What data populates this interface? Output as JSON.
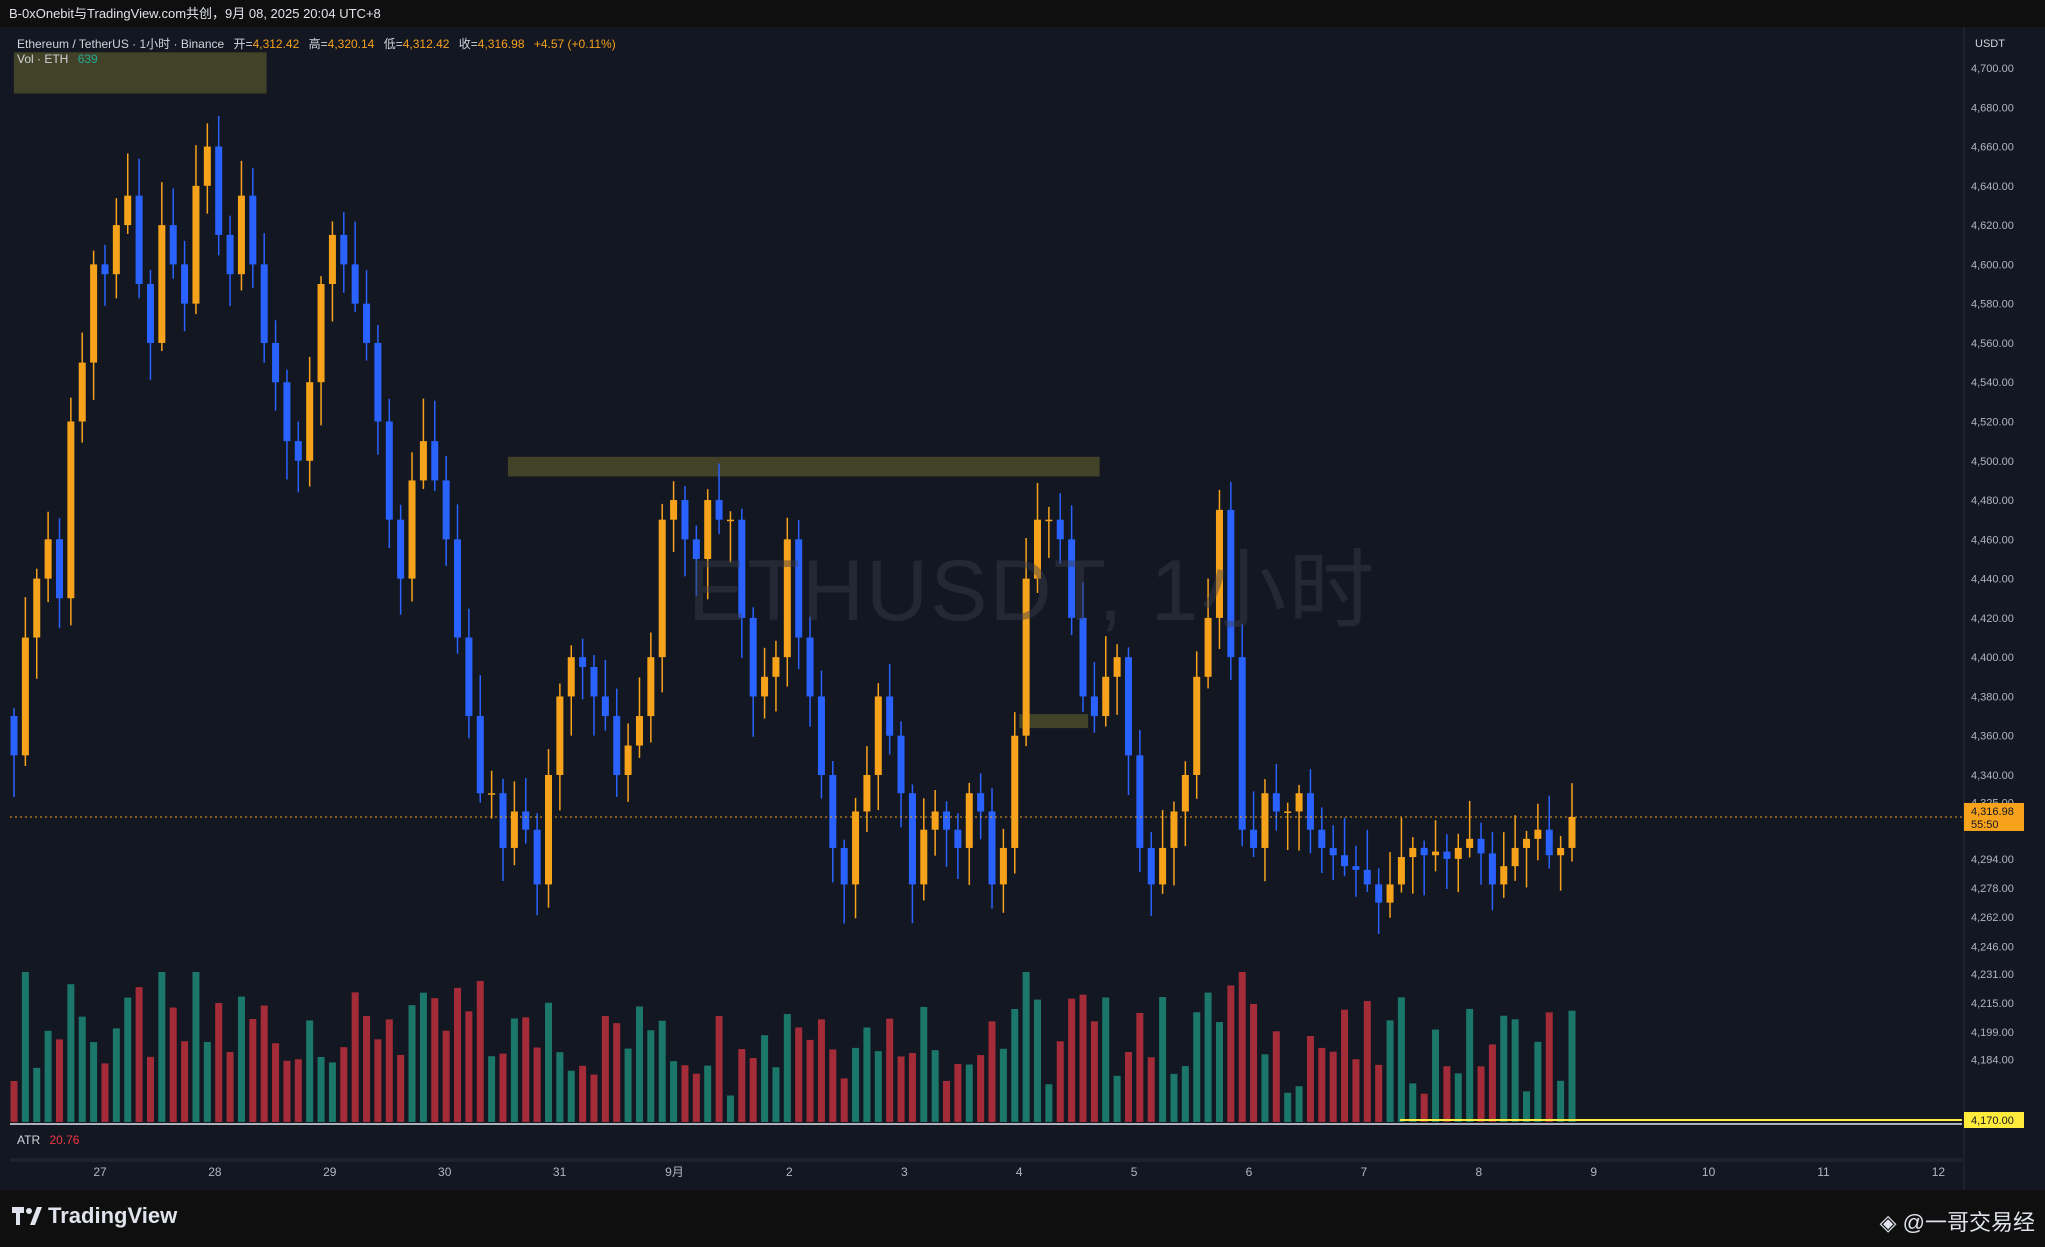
{
  "header": {
    "share_text": "B-0xOnebit与TradingView.com共创，9月 08, 2025 20:04 UTC+8"
  },
  "legend": {
    "symbol": "Ethereum / TetherUS · 1小时 · Binance",
    "open_label": "开=",
    "open_value": "4,312.42",
    "high_label": "高=",
    "high_value": "4,320.14",
    "low_label": "低=",
    "low_value": "4,312.42",
    "close_label": "收=",
    "close_value": "4,316.98",
    "change": "+4.57 (+0.11%)",
    "vol_label": "Vol · ETH",
    "vol_value": "639",
    "atr_label": "ATR",
    "atr_value": "20.76"
  },
  "watermark": "ETHUSDT, 1小时",
  "currency": "USDT",
  "branding": {
    "logo_text": "TradingView",
    "author_tag": "@一哥交易经"
  },
  "colors": {
    "up": "#f7a21b",
    "down": "#2962ff",
    "vol_up": "#22ab94",
    "vol_down": "#f23645",
    "zone": "#4a4a28",
    "support": "#ffeb3b"
  },
  "chart_data": {
    "type": "candlestick",
    "title": "",
    "ylim": [
      4170,
      4710
    ],
    "price_ticks": [
      "4,700.00",
      "4,680.00",
      "4,660.00",
      "4,640.00",
      "4,620.00",
      "4,600.00",
      "4,580.00",
      "4,560.00",
      "4,540.00",
      "4,520.00",
      "4,500.00",
      "4,480.00",
      "4,460.00",
      "4,440.00",
      "4,420.00",
      "4,400.00",
      "4,380.00",
      "4,360.00",
      "4,340.00",
      "4,325.00",
      "4,294.00",
      "4,278.00",
      "4,262.00",
      "4,246.00",
      "4,231.00",
      "4,215.00",
      "4,199.00",
      "4,184.00"
    ],
    "date_ticks": [
      "27",
      "28",
      "29",
      "30",
      "31",
      "9月",
      "2",
      "3",
      "4",
      "5",
      "6",
      "7",
      "8",
      "9",
      "10",
      "11",
      "12"
    ],
    "last_price": "4,316.98",
    "countdown": "55:50",
    "support_level": "4,170.00",
    "zones": [
      {
        "from_date": 26.25,
        "to_date": 28.45,
        "low": 4687,
        "high": 4708
      },
      {
        "from_date": 30.55,
        "to_date": 35.7,
        "low": 4492,
        "high": 4502
      },
      {
        "from_date": 35.0,
        "to_date": 35.6,
        "low": 4364,
        "high": 4371
      }
    ],
    "path_note": "hourly close path (approximate)",
    "closes": [
      4350,
      4410,
      4440,
      4460,
      4430,
      4520,
      4550,
      4600,
      4595,
      4620,
      4635,
      4590,
      4560,
      4620,
      4600,
      4580,
      4640,
      4660,
      4615,
      4595,
      4635,
      4600,
      4560,
      4540,
      4510,
      4500,
      4540,
      4590,
      4615,
      4600,
      4580,
      4560,
      4520,
      4470,
      4440,
      4490,
      4510,
      4490,
      4460,
      4410,
      4370,
      4330,
      4330,
      4300,
      4320,
      4310,
      4280,
      4340,
      4380,
      4400,
      4395,
      4380,
      4370,
      4340,
      4355,
      4370,
      4400,
      4470,
      4480,
      4460,
      4450,
      4480,
      4470,
      4470,
      4420,
      4380,
      4390,
      4400,
      4460,
      4410,
      4380,
      4340,
      4300,
      4280,
      4320,
      4340,
      4380,
      4360,
      4330,
      4280,
      4310,
      4320,
      4310,
      4300,
      4330,
      4320,
      4280,
      4300,
      4360,
      4440,
      4470,
      4470,
      4460,
      4420,
      4380,
      4370,
      4390,
      4400,
      4350,
      4300,
      4280,
      4300,
      4320,
      4340,
      4390,
      4420,
      4475,
      4400,
      4310,
      4300,
      4330,
      4320,
      4320,
      4330,
      4310,
      4300,
      4296,
      4290,
      4288,
      4280,
      4270,
      4280,
      4295,
      4300,
      4296,
      4298,
      4294,
      4300,
      4305,
      4297,
      4280,
      4290,
      4300,
      4305,
      4310,
      4296,
      4300,
      4316.98
    ],
    "atr_value": 20.76
  }
}
